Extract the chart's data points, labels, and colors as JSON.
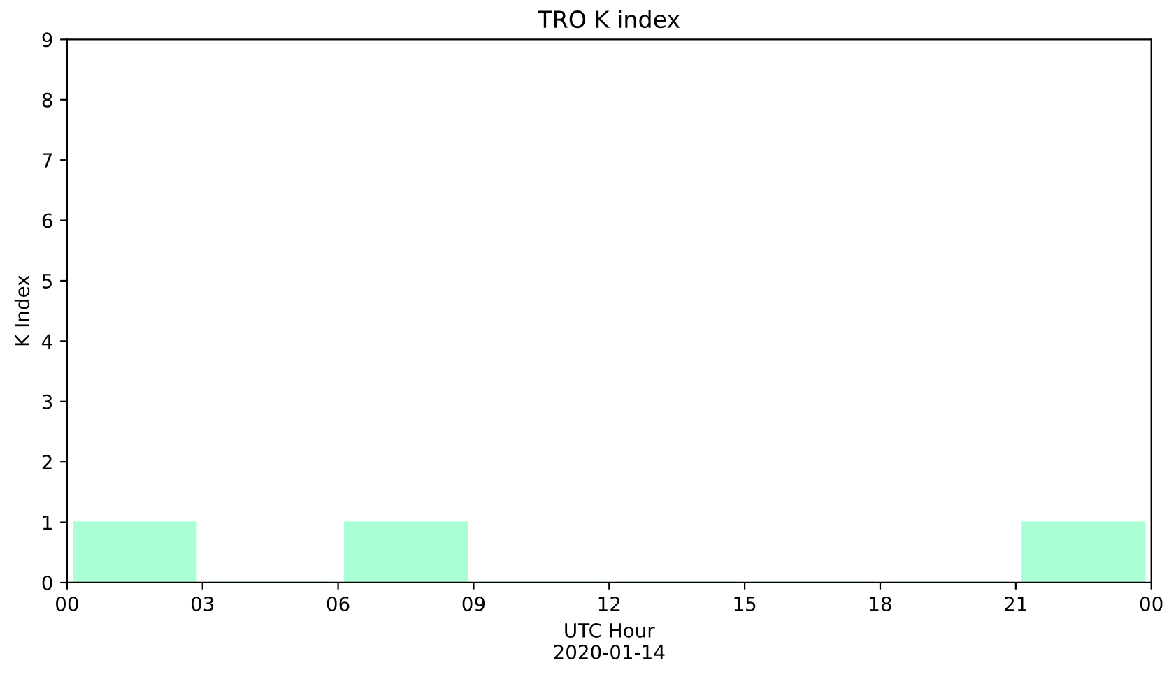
{
  "chart_data": {
    "type": "bar",
    "title": "TRO K index",
    "xlabel": "UTC Hour\n2020-01-14",
    "ylabel": "K Index",
    "x": [
      1.5,
      4.5,
      7.5,
      10.5,
      13.5,
      16.5,
      19.5,
      22.5
    ],
    "values": [
      1,
      0,
      1,
      0,
      0,
      0,
      0,
      1
    ],
    "color": "#aaffd4",
    "xlim": [
      0,
      24
    ],
    "xticks": [
      {
        "value": 0,
        "label": "00"
      },
      {
        "value": 3,
        "label": "03"
      },
      {
        "value": 6,
        "label": "06"
      },
      {
        "value": 9,
        "label": "09"
      },
      {
        "value": 12,
        "label": "12"
      },
      {
        "value": 15,
        "label": "15"
      },
      {
        "value": 18,
        "label": "18"
      },
      {
        "value": 21,
        "label": "21"
      },
      {
        "value": 24,
        "label": "00"
      }
    ],
    "ylim": [
      0,
      9
    ],
    "yticks": [
      0,
      1,
      2,
      3,
      4,
      5,
      6,
      7,
      8,
      9
    ],
    "grid": false
  }
}
